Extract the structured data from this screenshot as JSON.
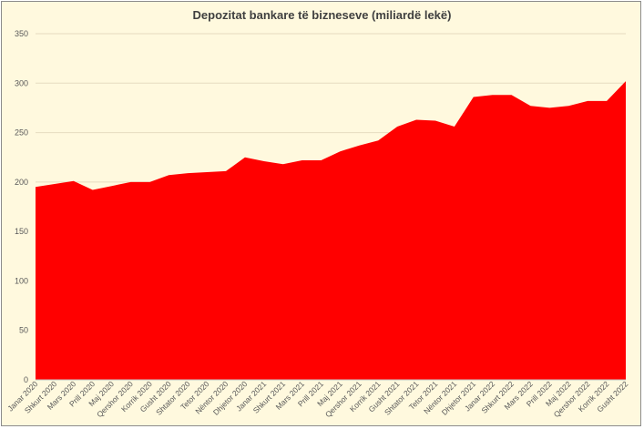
{
  "chart_data": {
    "type": "area",
    "title": "Depozitat bankare të bizneseve (miliardë lekë)",
    "xlabel": "",
    "ylabel": "",
    "ylim": [
      0,
      350
    ],
    "yticks": [
      0,
      50,
      100,
      150,
      200,
      250,
      300,
      350
    ],
    "grid": true,
    "legend": "none",
    "categories": [
      "Janar 2020",
      "Shkurt 2020",
      "Mars 2020",
      "Prill 2020",
      "Maj 2020",
      "Qershor 2020",
      "Korrik 2020",
      "Gusht 2020",
      "Shtator 2020",
      "Tetor 2020",
      "Nëntor 2020",
      "Dhjetor 2020",
      "Janar 2021",
      "Shkurt 2021",
      "Mars 2021",
      "Prill 2021",
      "Maj 2021",
      "Qershor 2021",
      "Korrik 2021",
      "Gusht 2021",
      "Shtator 2021",
      "Tetor 2021",
      "Nëntor 2021",
      "Dhjetor 2021",
      "Janar 2022",
      "Shkurt 2022",
      "Mars 2022",
      "Prill 2022",
      "Maj 2022",
      "Qershor 2022",
      "Korrik 2022",
      "Gusht 2022"
    ],
    "series": [
      {
        "values": [
          195,
          198,
          201,
          192,
          196,
          200,
          200,
          207,
          209,
          210,
          211,
          225,
          221,
          218,
          222,
          222,
          231,
          237,
          242,
          256,
          263,
          262,
          256,
          286,
          288,
          288,
          277,
          275,
          277,
          282,
          282,
          302
        ]
      }
    ],
    "colors": {
      "fill": "#ff0000",
      "background": "#fff9de",
      "grid": "#e6dcc0",
      "axis": "#bfbfbf"
    }
  }
}
